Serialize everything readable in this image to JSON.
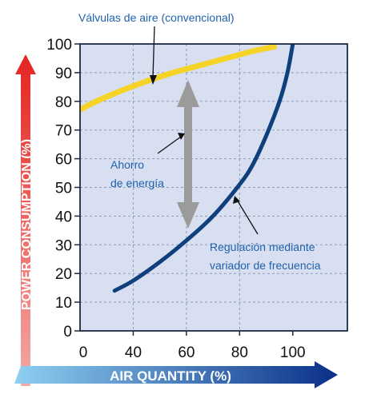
{
  "chart_data": {
    "type": "line",
    "x_ticks": [
      0,
      40,
      60,
      80,
      100
    ],
    "y_ticks": [
      0,
      10,
      20,
      30,
      40,
      50,
      60,
      70,
      80,
      90,
      100
    ],
    "xlabel": "AIR QUANTITY (%)",
    "ylabel": "POWER CONSUMPTION (%)",
    "grid": true,
    "series": [
      {
        "label": "Válvulas de aire (convencional)",
        "color": "#f5d327",
        "x": [
          7,
          15,
          25,
          35,
          45,
          55,
          65,
          75,
          85,
          93
        ],
        "y": [
          70,
          74.5,
          79.5,
          83.5,
          87,
          90,
          92.5,
          95,
          97.5,
          99
        ]
      },
      {
        "label": "Regulación mediante variador de frecuencia",
        "color": "#103f7e",
        "x": [
          33,
          40,
          50,
          60,
          70,
          80,
          85,
          90,
          95,
          98,
          100
        ],
        "y": [
          14,
          17.5,
          24,
          31.5,
          40,
          51,
          58,
          68,
          80,
          90,
          100
        ]
      }
    ],
    "annotations": {
      "savings": "Ahorro\nde energía"
    },
    "colors": {
      "plot_bg": "#d8dff0",
      "grid": "#8f9cb8",
      "frame": "#1a2a47",
      "savings_arrow": "#9b9b9b",
      "annotation_text": "#1f62ad",
      "y_arrow_top": "#e32420",
      "y_arrow_bottom": "#f3aaa6",
      "x_arrow_left": "#8fd0f2",
      "x_arrow_right": "#0a2f88"
    }
  }
}
